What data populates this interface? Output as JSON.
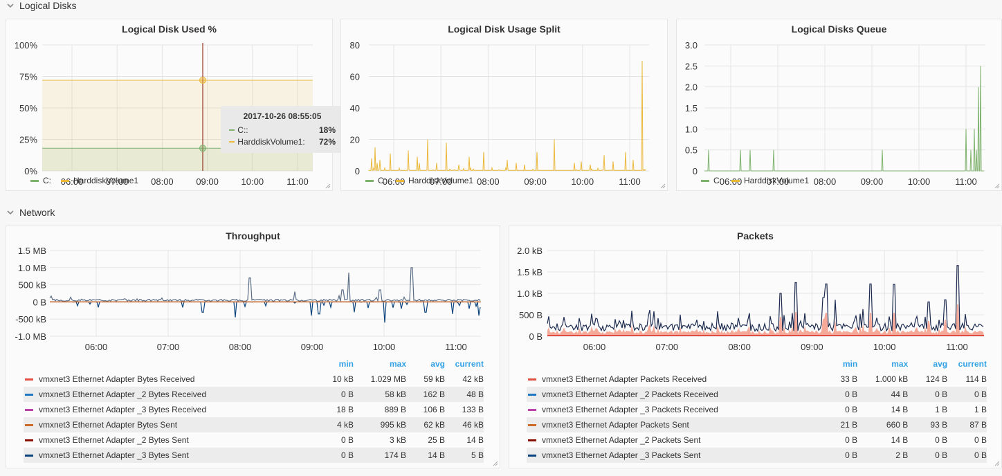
{
  "rows": {
    "disks_title": "Logical Disks",
    "network_title": "Network"
  },
  "colors": {
    "green": "#7eb26d",
    "yellow": "#eab839",
    "red": "#e24d42",
    "blue": "#1f78c1",
    "magenta": "#ba43a9",
    "orange": "#cd6929",
    "darkred": "#890f02",
    "navy": "#0a437c"
  },
  "panels": {
    "disk_used": {
      "title": "Logical Disk Used %",
      "legend": [
        "C:",
        "HarddiskVolume1"
      ],
      "tooltip": {
        "time": "2017-10-26 08:55:05",
        "rows": [
          {
            "name": "C::",
            "value": "18%"
          },
          {
            "name": "HarddiskVolume1:",
            "value": "72%"
          }
        ]
      }
    },
    "disk_split": {
      "title": "Logical Disk Usage Split",
      "legend": [
        "C:",
        "HarddiskVolume1"
      ]
    },
    "disk_queue": {
      "title": "Logical Disks Queue",
      "legend": [
        "C:",
        "HarddiskVolume1"
      ]
    },
    "throughput": {
      "title": "Throughput",
      "table": {
        "headers": [
          "min",
          "max",
          "avg",
          "current"
        ],
        "rows": [
          {
            "name": "vmxnet3 Ethernet Adapter Bytes Received",
            "min": "10 kB",
            "max": "1.029 MB",
            "avg": "59 kB",
            "current": "42 kB"
          },
          {
            "name": "vmxnet3 Ethernet Adapter _2 Bytes Received",
            "min": "0 B",
            "max": "58 kB",
            "avg": "162 B",
            "current": "48 B"
          },
          {
            "name": "vmxnet3 Ethernet Adapter _3 Bytes Received",
            "min": "18 B",
            "max": "889 B",
            "avg": "106 B",
            "current": "133 B"
          },
          {
            "name": "vmxnet3 Ethernet Adapter Bytes Sent",
            "min": "4 kB",
            "max": "995 kB",
            "avg": "62 kB",
            "current": "46 kB"
          },
          {
            "name": "vmxnet3 Ethernet Adapter _2 Bytes Sent",
            "min": "0 B",
            "max": "3 kB",
            "avg": "25 B",
            "current": "14 B"
          },
          {
            "name": "vmxnet3 Ethernet Adapter _3 Bytes Sent",
            "min": "0 B",
            "max": "174 B",
            "avg": "14 B",
            "current": "5 B"
          }
        ]
      }
    },
    "packets": {
      "title": "Packets",
      "table": {
        "headers": [
          "min",
          "max",
          "avg",
          "current"
        ],
        "rows": [
          {
            "name": "vmxnet3 Ethernet Adapter Packets Received",
            "min": "33 B",
            "max": "1.000 kB",
            "avg": "124 B",
            "current": "114 B"
          },
          {
            "name": "vmxnet3 Ethernet Adapter _2 Packets Received",
            "min": "0 B",
            "max": "44 B",
            "avg": "0 B",
            "current": "0 B"
          },
          {
            "name": "vmxnet3 Ethernet Adapter _3 Packets Received",
            "min": "0 B",
            "max": "14 B",
            "avg": "1 B",
            "current": "1 B"
          },
          {
            "name": "vmxnet3 Ethernet Adapter Packets Sent",
            "min": "21 B",
            "max": "660 B",
            "avg": "93 B",
            "current": "87 B"
          },
          {
            "name": "vmxnet3 Ethernet Adapter _2 Packets Sent",
            "min": "0 B",
            "max": "14 B",
            "avg": "0 B",
            "current": "0 B"
          },
          {
            "name": "vmxnet3 Ethernet Adapter _3 Packets Sent",
            "min": "0 B",
            "max": "2 B",
            "avg": "0 B",
            "current": "0 B"
          }
        ]
      }
    }
  },
  "chart_data": [
    {
      "type": "area",
      "title": "Logical Disk Used %",
      "yticks": [
        "0%",
        "25%",
        "50%",
        "75%",
        "100%"
      ],
      "xticks": [
        "06:00",
        "07:00",
        "08:00",
        "09:00",
        "10:00",
        "11:00"
      ],
      "series": [
        {
          "name": "C:",
          "value": 18
        },
        {
          "name": "HarddiskVolume1",
          "value": 72
        }
      ],
      "crosshair_time": "08:55"
    },
    {
      "type": "line",
      "title": "Logical Disk Usage Split",
      "yticks": [
        "0",
        "20",
        "40",
        "60",
        "80"
      ],
      "xticks": [
        "06:00",
        "07:00",
        "08:00",
        "09:00",
        "10:00",
        "11:00"
      ],
      "series": [
        {
          "name": "HarddiskVolume1",
          "peak": 70
        }
      ]
    },
    {
      "type": "line",
      "title": "Logical Disks Queue",
      "yticks": [
        "0",
        "0.5",
        "1.0",
        "1.5",
        "2.0",
        "2.5",
        "3.0"
      ],
      "xticks": [
        "06:00",
        "07:00",
        "08:00",
        "09:00",
        "10:00",
        "11:00"
      ],
      "series": [
        {
          "name": "C:",
          "peak": 2.5
        }
      ]
    },
    {
      "type": "line",
      "title": "Throughput",
      "yticks": [
        "-1.0 MB",
        "-500 kB",
        "0 B",
        "500 kB",
        "1.0 MB",
        "1.5 MB"
      ],
      "xticks": [
        "06:00",
        "07:00",
        "08:00",
        "09:00",
        "10:00",
        "11:00"
      ]
    },
    {
      "type": "line",
      "title": "Packets",
      "yticks": [
        "0 B",
        "500 B",
        "1.0 kB",
        "1.5 kB",
        "2.0 kB"
      ],
      "xticks": [
        "06:00",
        "07:00",
        "08:00",
        "09:00",
        "10:00",
        "11:00"
      ]
    }
  ]
}
